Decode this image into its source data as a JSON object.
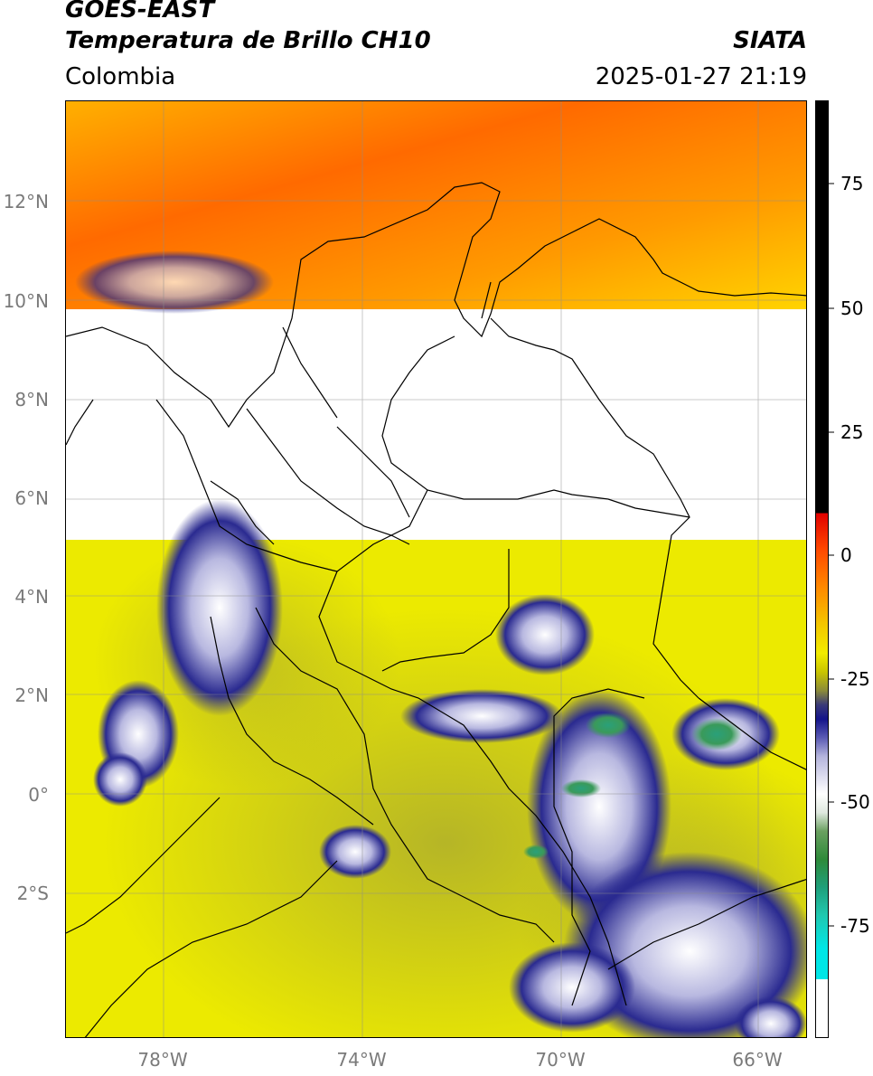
{
  "header": {
    "satellite": "GOES-EAST",
    "product": "Temperatura de Brillo CH10",
    "region": "Colombia",
    "source": "SIATA",
    "datetime": "2025-01-27 21:19"
  },
  "map": {
    "lat_labels": [
      "12°N",
      "10°N",
      "8°N",
      "6°N",
      "4°N",
      "2°N",
      "0°",
      "2°S"
    ],
    "lon_labels": [
      "78°W",
      "74°W",
      "70°W",
      "66°W"
    ]
  },
  "colorbar": {
    "tick_labels": [
      "75",
      "50",
      "25",
      "0",
      "-25",
      "-50",
      "-75"
    ],
    "colors": {
      "warm": "#ff6a00",
      "mid": "#f2ec00",
      "cold": "#14148a",
      "coldest": "#00e6e6",
      "nodata": "#ffffff"
    }
  }
}
